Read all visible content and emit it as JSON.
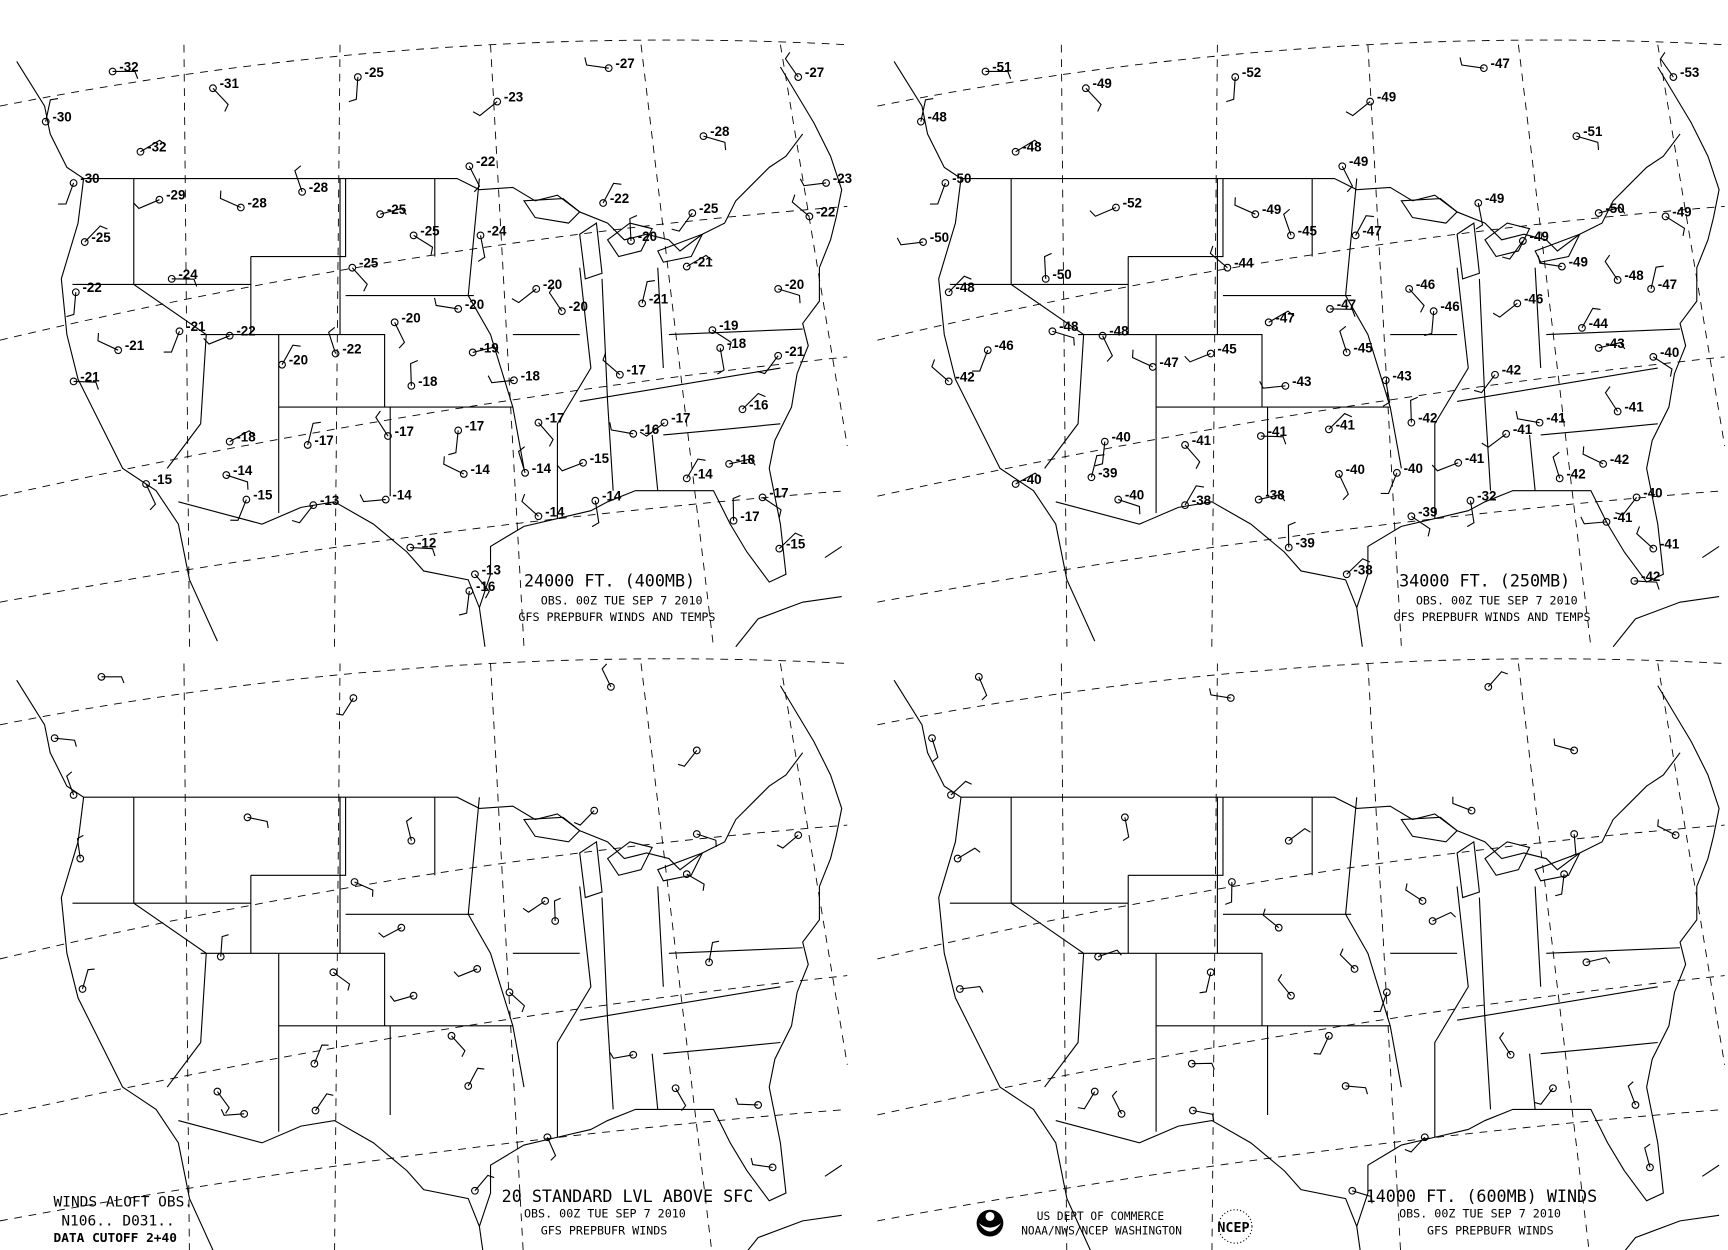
{
  "panels": [
    {
      "title": "24000 FT. (400MB)",
      "obs": "OBS.  00Z TUE SEP  7 2010",
      "source": "GFS PREPBUFR WINDS AND TEMPS",
      "temps": [
        -32,
        -31,
        -25,
        -23,
        -27,
        -27,
        -30,
        -32,
        -28,
        -22,
        -30,
        -29,
        -28,
        -28,
        -22,
        -25,
        -25,
        -24,
        -25,
        -23,
        -22,
        -20,
        -25,
        -24,
        -25,
        -22,
        -20,
        -20,
        -20,
        -21,
        -21,
        -20,
        -20,
        -21,
        -22,
        -21,
        -22,
        -20,
        -19,
        -19,
        -18,
        -21,
        -18,
        -17,
        -18,
        -16,
        -21,
        -17,
        -17,
        -17,
        -16,
        -17,
        -17,
        -18,
        -14,
        -15,
        -15,
        -15,
        -14,
        -14,
        -14,
        -18,
        -17,
        -14,
        -13,
        -14,
        -14,
        -17,
        -15,
        -12,
        -13,
        -16
      ]
    },
    {
      "title": "34000 FT. (250MB)",
      "obs": "OBS.  00Z TUE SEP  7 2010",
      "source": "GFS PREPBUFR WINDS AND TEMPS",
      "temps": [
        -51,
        -49,
        -52,
        -49,
        -47,
        -53,
        -48,
        -48,
        -51,
        -49,
        -50,
        -52,
        -49,
        -45,
        -47,
        -50,
        -49,
        -49,
        -49,
        -50,
        -44,
        -50,
        -48,
        -47,
        -46,
        -46,
        -46,
        -49,
        -48,
        -47,
        -47,
        -48,
        -48,
        -46,
        -45,
        -47,
        -45,
        -44,
        -43,
        -40,
        -43,
        -42,
        -43,
        -42,
        -42,
        -41,
        -41,
        -41,
        -40,
        -41,
        -41,
        -41,
        -39,
        -40,
        -40,
        -40,
        -40,
        -41,
        -42,
        -42,
        -38,
        -38,
        -39,
        -32,
        -40,
        -41,
        -41,
        -39,
        -38,
        -42
      ]
    },
    {
      "title": "20 STANDARD LVL ABOVE SFC",
      "obs": "OBS.  00Z TUE SEP  7 2010",
      "source": "GFS PREPBUFR WINDS"
    },
    {
      "title": "14000 FT. (600MB) WINDS",
      "obs": "OBS.  00Z TUE SEP  7 2010",
      "source": "GFS PREPBUFR WINDS"
    }
  ],
  "footer_left": {
    "line1": "WINDS ALOFT OBS.",
    "line2": "N106.. D031..",
    "line3": "DATA CUTOFF 2+40"
  },
  "footer_center": {
    "line1": "US DEPT OF COMMERCE",
    "line2": "NOAA/NWS/NCEP WASHINGTON",
    "ncep_logo": "NCEP"
  }
}
